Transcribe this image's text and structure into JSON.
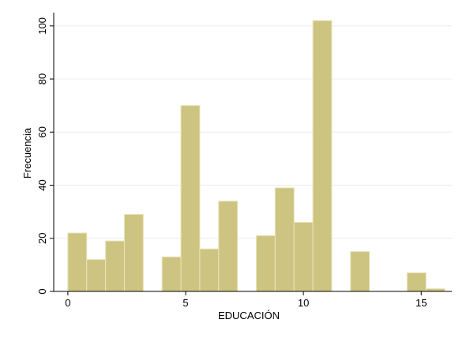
{
  "chart_data": {
    "type": "bar",
    "xlabel": "EDUCACIÓN",
    "ylabel": "Frecuencia",
    "xlim": [
      -0.6,
      16.3
    ],
    "ylim": [
      0,
      105
    ],
    "xticks": [
      0,
      5,
      10,
      15
    ],
    "yticks": [
      0,
      20,
      40,
      60,
      80,
      100
    ],
    "grid": true,
    "bin_width": 0.8,
    "bar_color": "#cdc482",
    "bar_edge_color": "#e9e3b8",
    "bins": [
      {
        "x": 0,
        "value": 22
      },
      {
        "x": 0.8,
        "value": 12
      },
      {
        "x": 1.6,
        "value": 19
      },
      {
        "x": 2.4,
        "value": 29
      },
      {
        "x": 4.0,
        "value": 13
      },
      {
        "x": 4.8,
        "value": 70
      },
      {
        "x": 5.6,
        "value": 16
      },
      {
        "x": 6.4,
        "value": 34
      },
      {
        "x": 8.0,
        "value": 21
      },
      {
        "x": 8.8,
        "value": 39
      },
      {
        "x": 9.6,
        "value": 26
      },
      {
        "x": 10.4,
        "value": 102
      },
      {
        "x": 12.0,
        "value": 15
      },
      {
        "x": 14.4,
        "value": 7
      },
      {
        "x": 15.2,
        "value": 1
      }
    ]
  }
}
